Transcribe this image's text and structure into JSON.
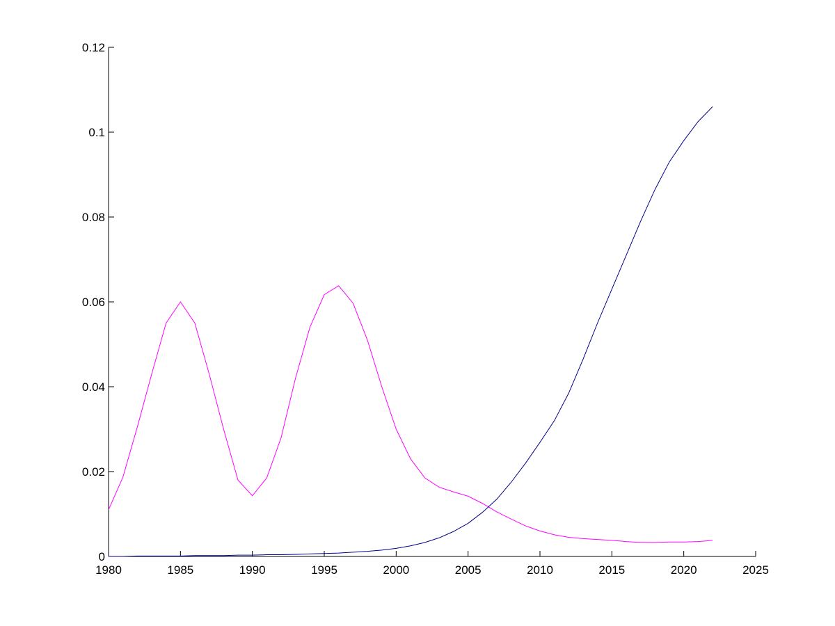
{
  "chart_data": {
    "type": "line",
    "x": [
      1980,
      1981,
      1982,
      1983,
      1984,
      1985,
      1986,
      1987,
      1988,
      1989,
      1990,
      1991,
      1992,
      1993,
      1994,
      1995,
      1996,
      1997,
      1998,
      1999,
      2000,
      2001,
      2002,
      2003,
      2004,
      2005,
      2006,
      2007,
      2008,
      2009,
      2010,
      2011,
      2012,
      2013,
      2014,
      2015,
      2016,
      2017,
      2018,
      2019,
      2020,
      2021,
      2022
    ],
    "series": [
      {
        "color": "#ff00ff",
        "values": [
          0.011,
          0.0187,
          0.0305,
          0.043,
          0.055,
          0.06,
          0.055,
          0.043,
          0.03,
          0.018,
          0.0143,
          0.0185,
          0.028,
          0.042,
          0.054,
          0.0617,
          0.0638,
          0.0597,
          0.051,
          0.04,
          0.03,
          0.023,
          0.0185,
          0.0163,
          0.0152,
          0.0142,
          0.0125,
          0.0105,
          0.0088,
          0.0072,
          0.006,
          0.0051,
          0.0045,
          0.0042,
          0.004,
          0.0038,
          0.0035,
          0.0033,
          0.0033,
          0.0034,
          0.0034,
          0.0035,
          0.0038
        ]
      },
      {
        "color": "#00008b",
        "values": [
          0,
          0,
          0.0001,
          0.0001,
          0.0001,
          0.0001,
          0.0002,
          0.0002,
          0.0002,
          0.0003,
          0.0003,
          0.0004,
          0.0004,
          0.0005,
          0.0006,
          0.0007,
          0.0008,
          0.001,
          0.0012,
          0.0015,
          0.0019,
          0.0025,
          0.0033,
          0.0044,
          0.0059,
          0.0078,
          0.0104,
          0.0135,
          0.0175,
          0.022,
          0.0269,
          0.032,
          0.0385,
          0.0465,
          0.055,
          0.063,
          0.071,
          0.079,
          0.0865,
          0.093,
          0.098,
          0.1025,
          0.106
        ]
      }
    ],
    "xlim": [
      1980,
      2025
    ],
    "xticks": [
      1980,
      1985,
      1990,
      1995,
      2000,
      2005,
      2010,
      2015,
      2020,
      2025
    ],
    "ylim": [
      0,
      0.12
    ],
    "yticks": [
      0,
      0.02,
      0.04,
      0.06,
      0.08,
      0.1,
      0.12
    ]
  }
}
